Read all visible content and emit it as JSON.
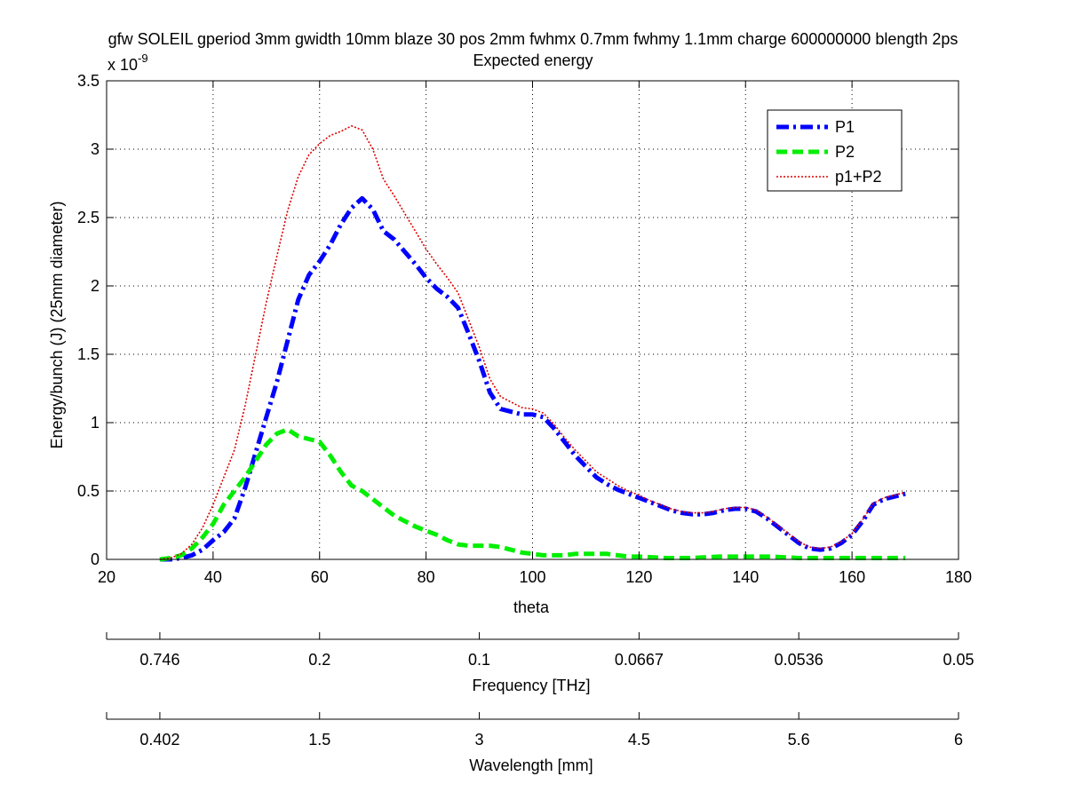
{
  "chart_data": {
    "type": "line",
    "title": "gfw SOLEIL gperiod 3mm gwidth 10mm blaze 30 pos 2mm fwhmx 0.7mm fwhmy 1.1mm charge 600000000 blength 2ps",
    "subtitle": "Expected energy",
    "xlabel": "theta",
    "ylabel": "Energy/bunch (J) (25mm diameter)",
    "y_exponent_label": "x 10",
    "y_exponent_power": "-9",
    "xlim": [
      20,
      180
    ],
    "ylim": [
      0,
      3.5
    ],
    "x_ticks": [
      "20",
      "40",
      "60",
      "80",
      "100",
      "120",
      "140",
      "160",
      "180"
    ],
    "y_ticks": [
      "0",
      "0.5",
      "1",
      "1.5",
      "2",
      "2.5",
      "3",
      "3.5"
    ],
    "grid": true,
    "legend_position": "top-right",
    "secondary_axes": [
      {
        "label": "Frequency [THz]",
        "ticks": [
          {
            "theta": 30,
            "label": "0.746"
          },
          {
            "theta": 60,
            "label": "0.2"
          },
          {
            "theta": 90,
            "label": "0.1"
          },
          {
            "theta": 120,
            "label": "0.0667"
          },
          {
            "theta": 150,
            "label": "0.0536"
          },
          {
            "theta": 180,
            "label": "0.05"
          }
        ]
      },
      {
        "label": "Wavelength [mm]",
        "ticks": [
          {
            "theta": 30,
            "label": "0.402"
          },
          {
            "theta": 60,
            "label": "1.5"
          },
          {
            "theta": 90,
            "label": "3"
          },
          {
            "theta": 120,
            "label": "4.5"
          },
          {
            "theta": 150,
            "label": "5.6"
          },
          {
            "theta": 180,
            "label": "6"
          }
        ]
      }
    ],
    "series": [
      {
        "name": "P1",
        "color": "#0000ff",
        "style": "dash-dot",
        "x": [
          30,
          32,
          34,
          36,
          38,
          40,
          42,
          44,
          46,
          48,
          50,
          52,
          54,
          56,
          58,
          60,
          62,
          64,
          66,
          68,
          70,
          72,
          74,
          76,
          78,
          80,
          82,
          84,
          86,
          88,
          90,
          92,
          94,
          96,
          98,
          100,
          102,
          104,
          106,
          108,
          110,
          112,
          114,
          116,
          118,
          120,
          122,
          124,
          126,
          128,
          130,
          132,
          134,
          136,
          138,
          140,
          142,
          144,
          146,
          148,
          150,
          152,
          154,
          156,
          158,
          160,
          162,
          164,
          166,
          168,
          170
        ],
        "values": [
          0.0,
          0.0,
          0.01,
          0.03,
          0.07,
          0.14,
          0.2,
          0.3,
          0.52,
          0.78,
          1.04,
          1.3,
          1.6,
          1.9,
          2.08,
          2.18,
          2.3,
          2.45,
          2.57,
          2.64,
          2.56,
          2.4,
          2.34,
          2.25,
          2.16,
          2.06,
          1.98,
          1.92,
          1.84,
          1.65,
          1.45,
          1.22,
          1.1,
          1.08,
          1.06,
          1.06,
          1.04,
          0.96,
          0.86,
          0.76,
          0.68,
          0.6,
          0.55,
          0.51,
          0.48,
          0.45,
          0.42,
          0.39,
          0.36,
          0.34,
          0.33,
          0.33,
          0.34,
          0.36,
          0.37,
          0.37,
          0.35,
          0.3,
          0.24,
          0.18,
          0.12,
          0.08,
          0.07,
          0.08,
          0.12,
          0.18,
          0.28,
          0.4,
          0.44,
          0.46,
          0.48
        ]
      },
      {
        "name": "P2",
        "color": "#00ee00",
        "style": "dashed",
        "x": [
          30,
          32,
          34,
          36,
          38,
          40,
          42,
          44,
          46,
          48,
          50,
          52,
          54,
          56,
          58,
          60,
          62,
          64,
          66,
          68,
          70,
          72,
          74,
          76,
          78,
          80,
          82,
          84,
          86,
          88,
          90,
          92,
          94,
          96,
          98,
          100,
          102,
          104,
          106,
          108,
          110,
          112,
          114,
          116,
          118,
          120,
          125,
          130,
          135,
          140,
          145,
          150,
          155,
          160,
          165,
          170
        ],
        "values": [
          0.0,
          0.01,
          0.03,
          0.08,
          0.16,
          0.26,
          0.4,
          0.5,
          0.6,
          0.72,
          0.84,
          0.92,
          0.95,
          0.9,
          0.88,
          0.86,
          0.76,
          0.64,
          0.54,
          0.5,
          0.44,
          0.38,
          0.32,
          0.28,
          0.24,
          0.21,
          0.18,
          0.14,
          0.11,
          0.1,
          0.1,
          0.1,
          0.09,
          0.07,
          0.05,
          0.04,
          0.03,
          0.03,
          0.03,
          0.04,
          0.04,
          0.04,
          0.04,
          0.03,
          0.02,
          0.02,
          0.01,
          0.01,
          0.02,
          0.02,
          0.02,
          0.01,
          0.01,
          0.01,
          0.01,
          0.01
        ]
      },
      {
        "name": "p1+P2",
        "color": "#dd0000",
        "style": "dotted",
        "x": [
          30,
          32,
          34,
          36,
          38,
          40,
          42,
          44,
          46,
          48,
          50,
          52,
          54,
          56,
          58,
          60,
          62,
          64,
          66,
          68,
          70,
          72,
          74,
          76,
          78,
          80,
          82,
          84,
          86,
          88,
          90,
          92,
          94,
          96,
          98,
          100,
          102,
          104,
          106,
          108,
          110,
          112,
          114,
          116,
          118,
          120,
          122,
          124,
          126,
          128,
          130,
          132,
          134,
          136,
          138,
          140,
          142,
          144,
          146,
          148,
          150,
          152,
          154,
          156,
          158,
          160,
          162,
          164,
          166,
          168,
          170
        ],
        "values": [
          0.0,
          0.01,
          0.04,
          0.11,
          0.23,
          0.4,
          0.6,
          0.8,
          1.12,
          1.5,
          1.88,
          2.22,
          2.55,
          2.8,
          2.96,
          3.04,
          3.1,
          3.13,
          3.17,
          3.14,
          3.0,
          2.78,
          2.66,
          2.53,
          2.4,
          2.27,
          2.16,
          2.06,
          1.95,
          1.75,
          1.55,
          1.32,
          1.19,
          1.15,
          1.11,
          1.1,
          1.07,
          0.99,
          0.89,
          0.8,
          0.72,
          0.64,
          0.59,
          0.54,
          0.5,
          0.47,
          0.43,
          0.4,
          0.37,
          0.35,
          0.34,
          0.34,
          0.35,
          0.37,
          0.38,
          0.38,
          0.36,
          0.31,
          0.25,
          0.19,
          0.13,
          0.09,
          0.08,
          0.09,
          0.13,
          0.19,
          0.29,
          0.41,
          0.45,
          0.47,
          0.49
        ]
      }
    ]
  }
}
